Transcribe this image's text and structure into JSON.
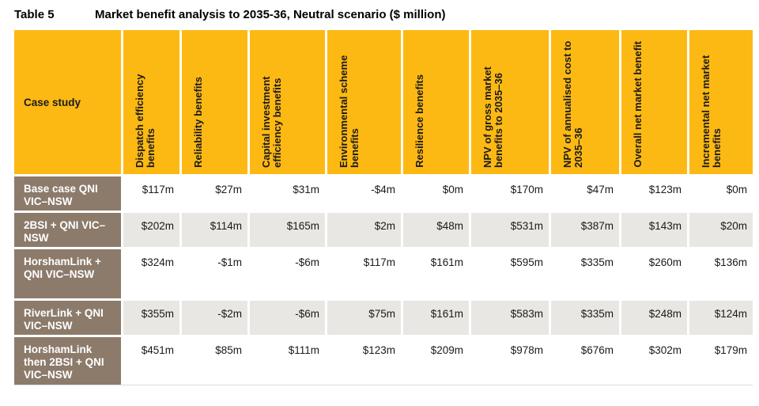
{
  "title": {
    "label": "Table 5",
    "text": "Market benefit analysis to 2035-36, Neutral scenario ($ million)"
  },
  "table": {
    "header": [
      "Case study",
      "Dispatch efficiency benefits",
      "Reliability benefits",
      "Capital investment efficiency benefits",
      "Environmental scheme benefits",
      "Resilience benefits",
      "NPV of gross market benefits to 2035–36",
      "NPV of annualised cost to 2035–36",
      "Overall net market benefit",
      "Incremental net market benefits"
    ],
    "rows": [
      [
        "Base case QNI VIC–NSW",
        "$117m",
        "$27m",
        "$31m",
        "-$4m",
        "$0m",
        "$170m",
        "$47m",
        "$123m",
        "$0m"
      ],
      [
        "2BSI + QNI VIC–NSW",
        "$202m",
        "$114m",
        "$165m",
        "$2m",
        "$48m",
        "$531m",
        "$387m",
        "$143m",
        "$20m"
      ],
      [
        "HorshamLink + QNI VIC–NSW",
        "$324m",
        "-$1m",
        "-$6m",
        "$117m",
        "$161m",
        "$595m",
        "$335m",
        "$260m",
        "$136m"
      ],
      [
        "RiverLink + QNI VIC–NSW",
        "$355m",
        "-$2m",
        "-$6m",
        "$75m",
        "$161m",
        "$583m",
        "$335m",
        "$248m",
        "$124m"
      ],
      [
        "HorshamLink then 2BSI + QNI VIC–NSW",
        "$451m",
        "$85m",
        "$111m",
        "$123m",
        "$209m",
        "$978m",
        "$676m",
        "$302m",
        "$179m"
      ]
    ]
  }
}
